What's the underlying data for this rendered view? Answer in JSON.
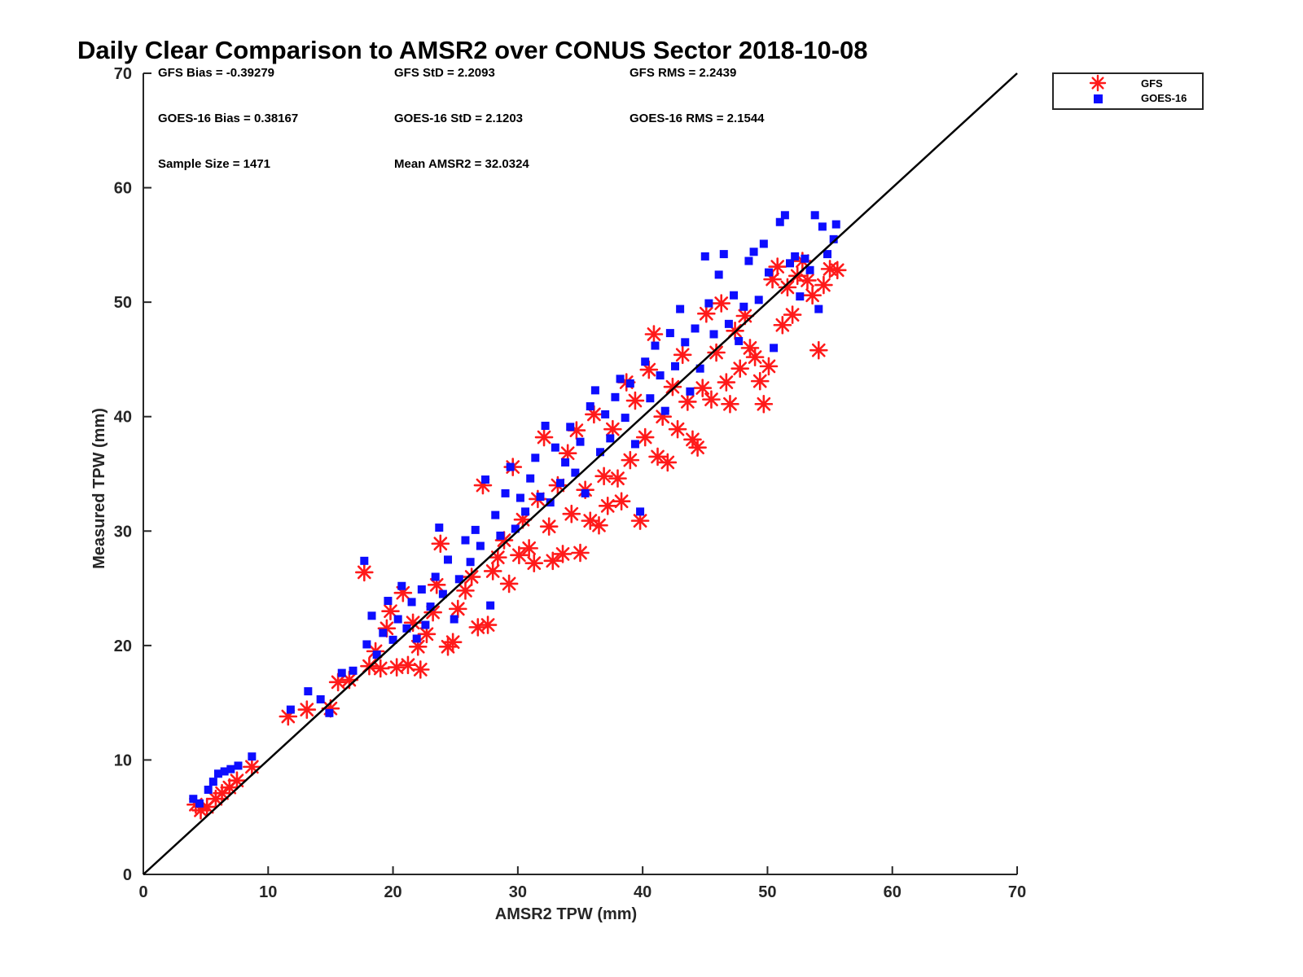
{
  "chart_data": {
    "type": "scatter",
    "title": "Daily Clear Comparison to AMSR2 over CONUS Sector 2018-10-08",
    "xlabel": "AMSR2 TPW (mm)",
    "ylabel": "Measured TPW (mm)",
    "xlim": [
      0,
      70
    ],
    "ylim": [
      0,
      70
    ],
    "xticks": [
      "0",
      "10",
      "20",
      "30",
      "40",
      "50",
      "60",
      "70"
    ],
    "yticks": [
      "0",
      "10",
      "20",
      "30",
      "40",
      "50",
      "60",
      "70"
    ],
    "grid": false,
    "legend_position": "outside top-right",
    "reference_line": "1:1",
    "stats": [
      [
        "GFS Bias = -0.39279",
        "GFS StD = 2.2093",
        "GFS RMS = 2.2439"
      ],
      [
        "GOES-16 Bias = 0.38167",
        "GOES-16 StD = 2.1203",
        "GOES-16 RMS = 2.1544"
      ],
      [
        "Sample Size = 1471",
        "Mean AMSR2 = 32.0324",
        ""
      ]
    ],
    "series": [
      {
        "name": "GFS",
        "marker": "asterisk",
        "color": "#ff1a1a",
        "points": [
          [
            4.2,
            6.1
          ],
          [
            4.6,
            5.6
          ],
          [
            5.1,
            5.9
          ],
          [
            5.8,
            6.6
          ],
          [
            6.3,
            7.1
          ],
          [
            6.9,
            7.6
          ],
          [
            7.5,
            8.2
          ],
          [
            8.7,
            9.4
          ],
          [
            11.6,
            13.8
          ],
          [
            13.1,
            14.4
          ],
          [
            15.0,
            14.5
          ],
          [
            15.6,
            16.8
          ],
          [
            16.5,
            17.0
          ],
          [
            17.7,
            26.4
          ],
          [
            18.1,
            18.2
          ],
          [
            18.6,
            19.5
          ],
          [
            19.0,
            18.0
          ],
          [
            19.5,
            21.5
          ],
          [
            19.8,
            23.0
          ],
          [
            20.3,
            18.1
          ],
          [
            20.8,
            24.6
          ],
          [
            21.2,
            18.3
          ],
          [
            21.6,
            22.0
          ],
          [
            22.0,
            19.9
          ],
          [
            22.2,
            17.9
          ],
          [
            22.7,
            21.0
          ],
          [
            23.2,
            22.9
          ],
          [
            23.5,
            25.3
          ],
          [
            23.8,
            28.9
          ],
          [
            24.4,
            19.9
          ],
          [
            24.8,
            20.3
          ],
          [
            25.2,
            23.2
          ],
          [
            25.8,
            24.8
          ],
          [
            26.3,
            26.0
          ],
          [
            26.8,
            21.6
          ],
          [
            27.2,
            34.0
          ],
          [
            27.6,
            21.8
          ],
          [
            28.0,
            26.5
          ],
          [
            28.4,
            27.7
          ],
          [
            28.9,
            29.2
          ],
          [
            29.3,
            25.4
          ],
          [
            29.6,
            35.6
          ],
          [
            30.1,
            27.9
          ],
          [
            30.4,
            31.0
          ],
          [
            30.9,
            28.5
          ],
          [
            31.3,
            27.2
          ],
          [
            31.6,
            32.8
          ],
          [
            32.1,
            38.2
          ],
          [
            32.5,
            30.4
          ],
          [
            32.8,
            27.4
          ],
          [
            33.2,
            34.0
          ],
          [
            33.6,
            28.0
          ],
          [
            34.0,
            36.8
          ],
          [
            34.3,
            31.5
          ],
          [
            34.7,
            38.8
          ],
          [
            35.0,
            28.1
          ],
          [
            35.4,
            33.6
          ],
          [
            35.8,
            30.9
          ],
          [
            36.1,
            40.2
          ],
          [
            36.5,
            30.5
          ],
          [
            36.9,
            34.8
          ],
          [
            37.2,
            32.2
          ],
          [
            37.6,
            38.9
          ],
          [
            38.0,
            34.6
          ],
          [
            38.3,
            32.6
          ],
          [
            38.7,
            43.0
          ],
          [
            39.0,
            36.2
          ],
          [
            39.4,
            41.4
          ],
          [
            39.8,
            30.9
          ],
          [
            40.2,
            38.2
          ],
          [
            40.5,
            44.1
          ],
          [
            40.9,
            47.2
          ],
          [
            41.2,
            36.5
          ],
          [
            41.6,
            40.0
          ],
          [
            42.0,
            36.0
          ],
          [
            42.4,
            42.6
          ],
          [
            42.8,
            38.9
          ],
          [
            43.2,
            45.4
          ],
          [
            43.6,
            41.3
          ],
          [
            44.0,
            38.0
          ],
          [
            44.4,
            37.3
          ],
          [
            44.8,
            42.5
          ],
          [
            45.1,
            49.0
          ],
          [
            45.5,
            41.5
          ],
          [
            45.9,
            45.6
          ],
          [
            46.3,
            49.9
          ],
          [
            46.7,
            43.0
          ],
          [
            47.0,
            41.1
          ],
          [
            47.4,
            47.5
          ],
          [
            47.8,
            44.2
          ],
          [
            48.2,
            48.8
          ],
          [
            48.6,
            46.0
          ],
          [
            49.0,
            45.2
          ],
          [
            49.4,
            43.1
          ],
          [
            49.7,
            41.1
          ],
          [
            50.1,
            44.4
          ],
          [
            50.4,
            52.0
          ],
          [
            50.8,
            53.1
          ],
          [
            51.2,
            48.0
          ],
          [
            51.6,
            51.3
          ],
          [
            52.0,
            48.9
          ],
          [
            52.4,
            52.3
          ],
          [
            52.8,
            53.6
          ],
          [
            53.2,
            51.9
          ],
          [
            53.6,
            50.6
          ],
          [
            54.1,
            45.8
          ],
          [
            54.5,
            51.5
          ],
          [
            55.0,
            52.9
          ],
          [
            55.6,
            52.8
          ]
        ]
      },
      {
        "name": "GOES-16",
        "marker": "square",
        "color": "#0d0dff",
        "points": [
          [
            4.0,
            6.6
          ],
          [
            4.5,
            6.2
          ],
          [
            5.2,
            7.4
          ],
          [
            5.6,
            8.1
          ],
          [
            6.0,
            8.8
          ],
          [
            6.5,
            9.0
          ],
          [
            7.0,
            9.2
          ],
          [
            7.6,
            9.5
          ],
          [
            8.7,
            10.3
          ],
          [
            11.8,
            14.4
          ],
          [
            13.2,
            16.0
          ],
          [
            14.2,
            15.3
          ],
          [
            14.9,
            14.1
          ],
          [
            15.9,
            17.6
          ],
          [
            16.8,
            17.8
          ],
          [
            17.7,
            27.4
          ],
          [
            17.9,
            20.1
          ],
          [
            18.3,
            22.6
          ],
          [
            18.7,
            19.2
          ],
          [
            19.2,
            21.1
          ],
          [
            19.6,
            23.9
          ],
          [
            20.0,
            20.5
          ],
          [
            20.4,
            22.3
          ],
          [
            20.7,
            25.2
          ],
          [
            21.1,
            21.5
          ],
          [
            21.5,
            23.8
          ],
          [
            21.9,
            20.6
          ],
          [
            22.3,
            24.9
          ],
          [
            22.6,
            21.8
          ],
          [
            23.0,
            23.4
          ],
          [
            23.4,
            26.0
          ],
          [
            23.7,
            30.3
          ],
          [
            24.0,
            24.5
          ],
          [
            24.4,
            27.5
          ],
          [
            24.9,
            22.3
          ],
          [
            25.3,
            25.8
          ],
          [
            25.8,
            29.2
          ],
          [
            26.2,
            27.3
          ],
          [
            26.6,
            30.1
          ],
          [
            27.0,
            28.7
          ],
          [
            27.4,
            34.5
          ],
          [
            27.8,
            23.5
          ],
          [
            28.2,
            31.4
          ],
          [
            28.6,
            29.6
          ],
          [
            29.0,
            33.3
          ],
          [
            29.4,
            35.6
          ],
          [
            29.8,
            30.2
          ],
          [
            30.2,
            32.9
          ],
          [
            30.6,
            31.7
          ],
          [
            31.0,
            34.6
          ],
          [
            31.4,
            36.4
          ],
          [
            31.8,
            33.0
          ],
          [
            32.2,
            39.2
          ],
          [
            32.6,
            32.5
          ],
          [
            33.0,
            37.3
          ],
          [
            33.4,
            34.2
          ],
          [
            33.8,
            36.0
          ],
          [
            34.2,
            39.1
          ],
          [
            34.6,
            35.1
          ],
          [
            35.0,
            37.8
          ],
          [
            35.4,
            33.3
          ],
          [
            35.8,
            40.9
          ],
          [
            36.2,
            42.3
          ],
          [
            36.6,
            36.9
          ],
          [
            37.0,
            40.2
          ],
          [
            37.4,
            38.1
          ],
          [
            37.8,
            41.7
          ],
          [
            38.2,
            43.3
          ],
          [
            38.6,
            39.9
          ],
          [
            39.0,
            42.9
          ],
          [
            39.4,
            37.6
          ],
          [
            39.8,
            31.7
          ],
          [
            40.2,
            44.8
          ],
          [
            40.6,
            41.6
          ],
          [
            41.0,
            46.2
          ],
          [
            41.4,
            43.6
          ],
          [
            41.8,
            40.5
          ],
          [
            42.2,
            47.3
          ],
          [
            42.6,
            44.4
          ],
          [
            43.0,
            49.4
          ],
          [
            43.4,
            46.5
          ],
          [
            43.8,
            42.2
          ],
          [
            44.2,
            47.7
          ],
          [
            44.6,
            44.2
          ],
          [
            45.0,
            54.0
          ],
          [
            45.3,
            49.9
          ],
          [
            45.7,
            47.2
          ],
          [
            46.1,
            52.4
          ],
          [
            46.5,
            54.2
          ],
          [
            46.9,
            48.1
          ],
          [
            47.3,
            50.6
          ],
          [
            47.7,
            46.6
          ],
          [
            48.1,
            49.6
          ],
          [
            48.5,
            53.6
          ],
          [
            48.9,
            54.4
          ],
          [
            49.3,
            50.2
          ],
          [
            49.7,
            55.1
          ],
          [
            50.1,
            52.6
          ],
          [
            50.5,
            46.0
          ],
          [
            51.0,
            57.0
          ],
          [
            51.4,
            57.6
          ],
          [
            51.8,
            53.4
          ],
          [
            52.2,
            54.0
          ],
          [
            52.6,
            50.5
          ],
          [
            53.0,
            53.8
          ],
          [
            53.4,
            52.8
          ],
          [
            53.8,
            57.6
          ],
          [
            54.1,
            49.4
          ],
          [
            54.4,
            56.6
          ],
          [
            54.8,
            54.2
          ],
          [
            55.3,
            55.5
          ],
          [
            55.5,
            56.8
          ]
        ]
      }
    ]
  }
}
